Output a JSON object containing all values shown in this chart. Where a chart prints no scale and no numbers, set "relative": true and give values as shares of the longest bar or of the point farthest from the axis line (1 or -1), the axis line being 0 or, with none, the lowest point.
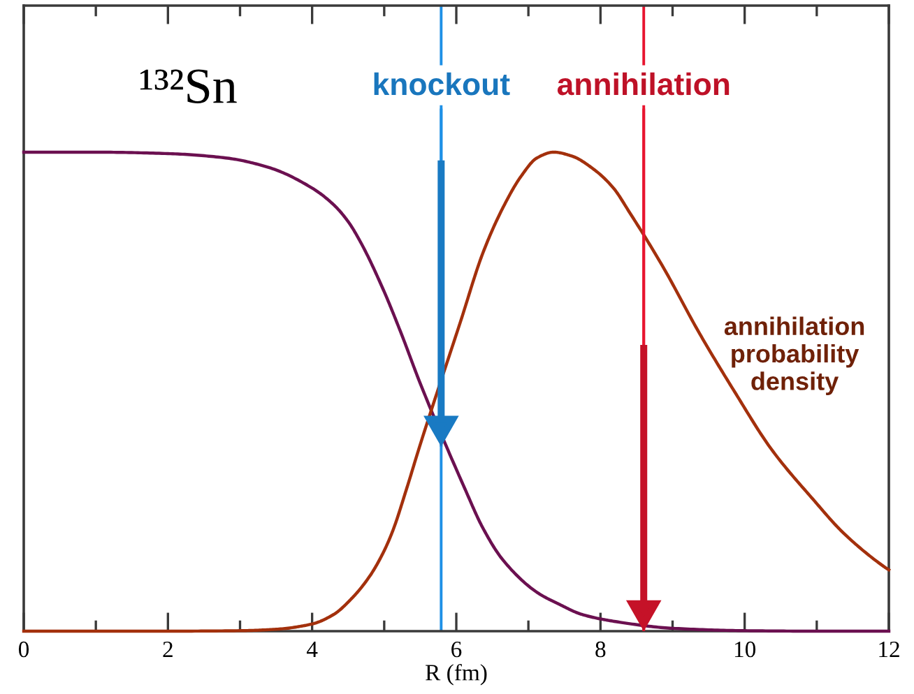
{
  "chart_data": {
    "type": "line",
    "relative": true,
    "title": "¹³²Sn",
    "xlabel": "R (fm)",
    "xlim": [
      0,
      12
    ],
    "xticks": [
      0,
      {
        "value": 1,
        "label": null
      },
      2,
      {
        "value": 3,
        "label": null
      },
      4,
      {
        "value": 5,
        "label": null
      },
      6,
      {
        "value": 7,
        "label": null
      },
      8,
      {
        "value": 9,
        "label": null
      },
      10,
      {
        "value": 11,
        "label": null
      },
      12
    ],
    "series": [
      {
        "color": "#6b1050",
        "x": [
          0,
          1,
          2,
          2.8,
          3.4,
          4.0,
          4.3,
          4.5,
          4.68,
          4.99,
          5.24,
          5.49,
          6.12,
          6.37,
          6.65,
          7.13,
          7.43,
          7.74,
          8.21,
          9.0,
          10,
          11,
          12
        ],
        "values": [
          1,
          1,
          0.997,
          0.988,
          0.968,
          0.925,
          0.89,
          0.855,
          0.81,
          0.712,
          0.62,
          0.521,
          0.297,
          0.215,
          0.148,
          0.08,
          0.056,
          0.035,
          0.02,
          0.006,
          0.001,
          0,
          0
        ]
      },
      {
        "name": "annihilation\nprobability\ndensity",
        "color": "#a3300c",
        "x": [
          0,
          1,
          2,
          3,
          3.5,
          4.0,
          4.3,
          4.56,
          4.8,
          4.99,
          5.12,
          5.31,
          5.49,
          6.06,
          6.37,
          6.65,
          6.9,
          7.12,
          7.35,
          7.6,
          7.9,
          8.18,
          8.4,
          8.85,
          9.38,
          9.86,
          10.37,
          10.95,
          11.37,
          11.93,
          12
        ],
        "values": [
          0,
          0,
          0,
          0.001,
          0.004,
          0.015,
          0.035,
          0.07,
          0.115,
          0.165,
          0.21,
          0.297,
          0.385,
          0.647,
          0.79,
          0.885,
          0.95,
          0.988,
          1.0,
          0.992,
          0.965,
          0.925,
          0.875,
          0.765,
          0.62,
          0.5,
          0.38,
          0.275,
          0.205,
          0.135,
          0.128
        ]
      }
    ],
    "ref_lines": [
      {
        "axis": "x",
        "value": 5.79,
        "color": "#1e90e6"
      },
      {
        "axis": "x",
        "value": 8.6,
        "color": "#e8152f"
      }
    ],
    "annotations": [
      {
        "text": "knockout",
        "x": 5.79,
        "y": 0.385
      },
      {
        "text": "annihilation",
        "x": 8.6,
        "y": 0
      }
    ]
  }
}
